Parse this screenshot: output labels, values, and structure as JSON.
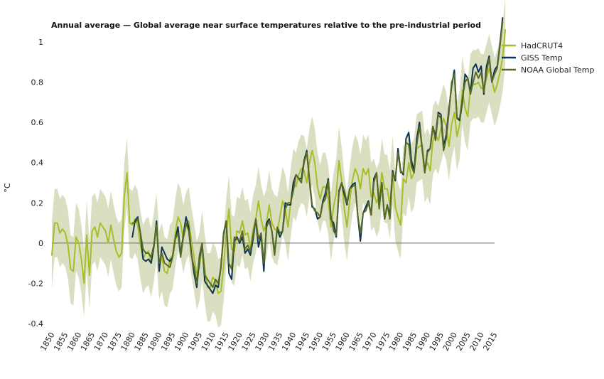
{
  "colors": {
    "hadcrut": "#a8bd2a",
    "giss": "#0d3552",
    "noaa": "#586b22",
    "band": "#d7dcbb",
    "zero_line": "#666666"
  },
  "chart_data": {
    "type": "line",
    "title": "Annual average — Global average near surface temperatures relative to the pre-industrial period",
    "ylabel": "°C",
    "xlabel": "",
    "xlim": [
      1850,
      2015
    ],
    "ylim": [
      -0.45,
      1.0
    ],
    "yticks": [
      -0.4,
      -0.2,
      0,
      0.2,
      0.4,
      0.6,
      0.8,
      1
    ],
    "ytick_labels": [
      "-0.4",
      "-0.2",
      "0",
      "0.2",
      "0.4",
      "0.6",
      "0.8",
      "1"
    ],
    "xticks": [
      1850,
      1855,
      1860,
      1865,
      1870,
      1875,
      1880,
      1885,
      1890,
      1895,
      1900,
      1905,
      1910,
      1915,
      1920,
      1925,
      1930,
      1935,
      1940,
      1945,
      1950,
      1955,
      1960,
      1965,
      1970,
      1975,
      1980,
      1985,
      1990,
      1995,
      2000,
      2005,
      2010,
      2015
    ],
    "xtick_labels": [
      "1850",
      "1855",
      "1860",
      "1865",
      "1870",
      "1875",
      "1880",
      "1885",
      "1890",
      "1895",
      "1900",
      "1905",
      "1910",
      "1915",
      "1920",
      "1925",
      "1930",
      "1935",
      "1940",
      "1945",
      "1950",
      "1955",
      "1960",
      "1965",
      "1970",
      "1975",
      "1980",
      "1985",
      "1990",
      "1995",
      "2000",
      "2005",
      "2010",
      "2015"
    ],
    "grid": false,
    "legend_position": "top-right",
    "uncertainty_half_width": 0.17,
    "series": [
      {
        "name": "HadCRUT4",
        "key": "hadcrut",
        "x_start": 1850,
        "values": [
          -0.06,
          0.1,
          0.1,
          0.05,
          0.07,
          0.05,
          -0.01,
          -0.13,
          -0.14,
          0.03,
          0.0,
          -0.08,
          -0.2,
          0.04,
          -0.16,
          0.06,
          0.08,
          0.03,
          0.1,
          0.08,
          0.06,
          0.0,
          0.09,
          0.02,
          -0.04,
          -0.07,
          -0.05,
          0.23,
          0.35,
          0.1,
          0.09,
          0.12,
          0.09,
          -0.01,
          -0.08,
          -0.05,
          -0.04,
          -0.1,
          -0.02,
          0.08,
          -0.11,
          -0.07,
          -0.14,
          -0.15,
          -0.08,
          -0.06,
          0.05,
          0.13,
          0.1,
          0.02,
          0.08,
          0.11,
          0.01,
          -0.07,
          -0.16,
          -0.12,
          -0.01,
          -0.13,
          -0.22,
          -0.22,
          -0.17,
          -0.19,
          -0.25,
          -0.24,
          -0.12,
          0.05,
          0.17,
          -0.03,
          -0.04,
          0.06,
          0.05,
          0.11,
          0.04,
          0.05,
          -0.02,
          0.07,
          0.12,
          0.21,
          0.12,
          0.06,
          0.1,
          0.19,
          0.1,
          0.07,
          0.06,
          0.13,
          0.21,
          0.17,
          0.08,
          0.2,
          0.3,
          0.28,
          0.34,
          0.37,
          0.36,
          0.3,
          0.4,
          0.46,
          0.4,
          0.28,
          0.22,
          0.28,
          0.28,
          0.22,
          0.08,
          0.18,
          0.25,
          0.41,
          0.31,
          0.17,
          0.08,
          0.21,
          0.31,
          0.37,
          0.34,
          0.27,
          0.37,
          0.34,
          0.37,
          0.23,
          0.25,
          0.2,
          0.23,
          0.35,
          0.27,
          0.27,
          0.19,
          0.36,
          0.18,
          0.13,
          0.09,
          0.32,
          0.3,
          0.4,
          0.32,
          0.35,
          0.47,
          0.48,
          0.49,
          0.37,
          0.4,
          0.36,
          0.51,
          0.54,
          0.51,
          0.57,
          0.62,
          0.58,
          0.48,
          0.59,
          0.65,
          0.53,
          0.59,
          0.76,
          0.67,
          0.63,
          0.77,
          0.79,
          0.79,
          0.8,
          0.77,
          0.77,
          0.82,
          0.87,
          0.81,
          0.75,
          0.79,
          0.85,
          0.92,
          1.06
        ]
      },
      {
        "name": "GISS Temp",
        "key": "giss",
        "x_start": 1880,
        "values": [
          0.03,
          0.11,
          0.13,
          0.05,
          -0.08,
          -0.09,
          -0.08,
          -0.1,
          -0.02,
          0.11,
          -0.14,
          -0.02,
          -0.05,
          -0.08,
          -0.09,
          -0.07,
          0.02,
          0.08,
          -0.06,
          0.04,
          0.13,
          0.08,
          -0.05,
          -0.15,
          -0.22,
          -0.08,
          0.0,
          -0.19,
          -0.21,
          -0.23,
          -0.25,
          -0.21,
          -0.22,
          -0.12,
          0.04,
          0.11,
          -0.15,
          -0.18,
          0.01,
          0.03,
          0.0,
          0.03,
          -0.05,
          -0.03,
          -0.06,
          0.02,
          0.12,
          -0.02,
          0.04,
          -0.14,
          0.1,
          0.12,
          0.06,
          -0.05,
          0.07,
          0.03,
          0.06,
          0.2,
          0.19,
          0.19,
          0.3,
          0.34,
          0.32,
          0.32,
          0.41,
          0.46,
          0.31,
          0.18,
          0.17,
          0.12,
          0.13,
          0.21,
          0.25,
          0.32,
          0.12,
          0.1,
          0.03,
          0.26,
          0.3,
          0.24,
          0.19,
          0.27,
          0.29,
          0.3,
          0.14,
          0.01,
          0.15,
          0.18,
          0.21,
          0.14,
          0.32,
          0.35,
          0.19,
          0.3,
          0.12,
          0.19,
          0.14,
          0.36,
          0.31,
          0.47,
          0.36,
          0.34,
          0.52,
          0.55,
          0.41,
          0.36,
          0.52,
          0.6,
          0.47,
          0.35,
          0.46,
          0.47,
          0.58,
          0.53,
          0.65,
          0.64,
          0.48,
          0.54,
          0.67,
          0.78,
          0.86,
          0.62,
          0.61,
          0.7,
          0.84,
          0.82,
          0.75,
          0.87,
          0.89,
          0.85,
          0.88,
          0.74,
          0.88,
          0.93,
          0.8,
          0.86,
          0.88,
          0.99,
          1.12
        ]
      },
      {
        "name": "NOAA Global Temp",
        "key": "noaa",
        "x_start": 1880,
        "values": [
          0.1,
          0.1,
          0.12,
          0.05,
          -0.03,
          -0.05,
          -0.05,
          -0.07,
          -0.01,
          0.09,
          -0.1,
          -0.05,
          -0.1,
          -0.11,
          -0.12,
          -0.07,
          0.02,
          0.05,
          -0.07,
          0.03,
          0.1,
          0.06,
          -0.06,
          -0.12,
          -0.2,
          -0.06,
          0.0,
          -0.16,
          -0.18,
          -0.2,
          -0.22,
          -0.18,
          -0.2,
          -0.12,
          0.05,
          0.11,
          -0.1,
          -0.13,
          0.03,
          0.02,
          0.01,
          0.06,
          -0.03,
          -0.01,
          -0.04,
          0.04,
          0.12,
          0.02,
          0.05,
          -0.1,
          0.08,
          0.11,
          0.06,
          -0.06,
          0.08,
          0.05,
          0.06,
          0.17,
          0.2,
          0.2,
          0.26,
          0.34,
          0.32,
          0.3,
          0.4,
          0.45,
          0.32,
          0.19,
          0.16,
          0.15,
          0.13,
          0.2,
          0.22,
          0.31,
          0.14,
          0.06,
          0.04,
          0.25,
          0.3,
          0.26,
          0.2,
          0.27,
          0.28,
          0.29,
          0.14,
          0.05,
          0.15,
          0.16,
          0.2,
          0.14,
          0.3,
          0.35,
          0.17,
          0.3,
          0.12,
          0.19,
          0.12,
          0.35,
          0.32,
          0.45,
          0.35,
          0.35,
          0.5,
          0.49,
          0.38,
          0.35,
          0.49,
          0.58,
          0.47,
          0.35,
          0.45,
          0.47,
          0.58,
          0.51,
          0.64,
          0.62,
          0.46,
          0.52,
          0.65,
          0.8,
          0.84,
          0.62,
          0.62,
          0.72,
          0.8,
          0.82,
          0.74,
          0.8,
          0.85,
          0.82,
          0.85,
          0.75,
          0.85,
          0.92,
          0.8,
          0.84,
          0.87,
          0.98,
          1.1
        ]
      }
    ]
  }
}
